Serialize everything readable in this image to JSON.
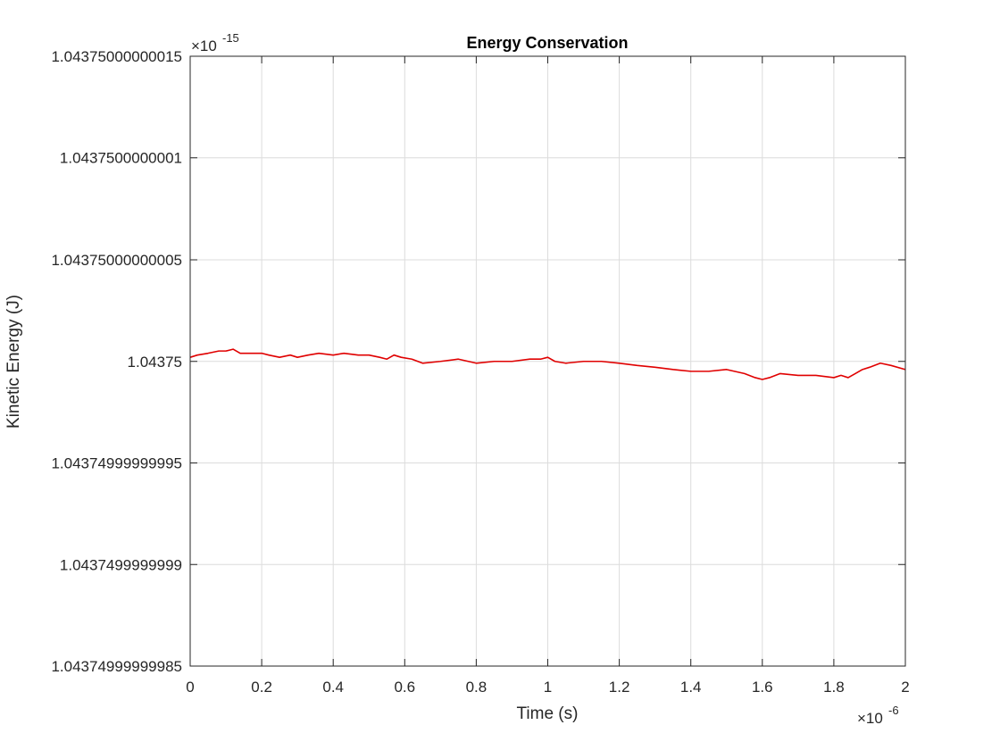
{
  "chart_data": {
    "type": "line",
    "title": "Energy Conservation",
    "xlabel": "Time (s)",
    "ylabel": "Kinetic Energy (J)",
    "x_exponent_label": "×10",
    "x_exponent": "-6",
    "y_exponent_label": "×10",
    "y_exponent": "-15",
    "xlim": [
      0,
      2
    ],
    "ylim": [
      1.04374999999985,
      1.04375000000015
    ],
    "grid": true,
    "x_ticks": [
      {
        "value": 0,
        "label": "0"
      },
      {
        "value": 0.2,
        "label": "0.2"
      },
      {
        "value": 0.4,
        "label": "0.4"
      },
      {
        "value": 0.6,
        "label": "0.6"
      },
      {
        "value": 0.8,
        "label": "0.8"
      },
      {
        "value": 1,
        "label": "1"
      },
      {
        "value": 1.2,
        "label": "1.2"
      },
      {
        "value": 1.4,
        "label": "1.4"
      },
      {
        "value": 1.6,
        "label": "1.6"
      },
      {
        "value": 1.8,
        "label": "1.8"
      },
      {
        "value": 2,
        "label": "2"
      }
    ],
    "y_ticks": [
      {
        "value": 1.04375000000015,
        "label": "1.04375000000015"
      },
      {
        "value": 1.0437500000001,
        "label": "1.0437500000001"
      },
      {
        "value": 1.04375000000005,
        "label": "1.04375000000005"
      },
      {
        "value": 1.04375,
        "label": "1.04375"
      },
      {
        "value": 1.04374999999995,
        "label": "1.04374999999995"
      },
      {
        "value": 1.0437499999999,
        "label": "1.0437499999999"
      },
      {
        "value": 1.04374999999985,
        "label": "1.04374999999985"
      }
    ],
    "series": [
      {
        "color": "#e00000",
        "x": [
          0,
          0.02,
          0.05,
          0.08,
          0.1,
          0.12,
          0.14,
          0.17,
          0.2,
          0.22,
          0.25,
          0.28,
          0.3,
          0.33,
          0.36,
          0.4,
          0.43,
          0.47,
          0.5,
          0.53,
          0.55,
          0.57,
          0.59,
          0.62,
          0.65,
          0.7,
          0.75,
          0.8,
          0.85,
          0.9,
          0.95,
          0.98,
          1.0,
          1.02,
          1.05,
          1.1,
          1.15,
          1.2,
          1.25,
          1.3,
          1.35,
          1.4,
          1.45,
          1.5,
          1.55,
          1.58,
          1.6,
          1.62,
          1.65,
          1.7,
          1.75,
          1.8,
          1.82,
          1.84,
          1.86,
          1.88,
          1.9,
          1.93,
          1.96,
          2.0
        ],
        "y": [
          1.043750000000002,
          1.043750000000003,
          1.043750000000004,
          1.043750000000005,
          1.043750000000005,
          1.043750000000006,
          1.043750000000004,
          1.043750000000004,
          1.043750000000004,
          1.043750000000003,
          1.043750000000002,
          1.043750000000003,
          1.043750000000002,
          1.043750000000003,
          1.043750000000004,
          1.043750000000003,
          1.043750000000004,
          1.043750000000003,
          1.043750000000003,
          1.043750000000002,
          1.043750000000001,
          1.043750000000003,
          1.043750000000002,
          1.043750000000001,
          1.043749999999999,
          1.04375,
          1.043750000000001,
          1.043749999999999,
          1.04375,
          1.04375,
          1.043750000000001,
          1.043750000000001,
          1.043750000000002,
          1.04375,
          1.043749999999999,
          1.04375,
          1.04375,
          1.043749999999999,
          1.043749999999998,
          1.043749999999997,
          1.043749999999996,
          1.043749999999995,
          1.043749999999995,
          1.043749999999996,
          1.043749999999994,
          1.043749999999992,
          1.043749999999991,
          1.043749999999992,
          1.043749999999994,
          1.043749999999993,
          1.043749999999993,
          1.043749999999992,
          1.043749999999993,
          1.043749999999992,
          1.043749999999994,
          1.043749999999996,
          1.043749999999997,
          1.043749999999999,
          1.043749999999998,
          1.043749999999996
        ]
      }
    ]
  }
}
